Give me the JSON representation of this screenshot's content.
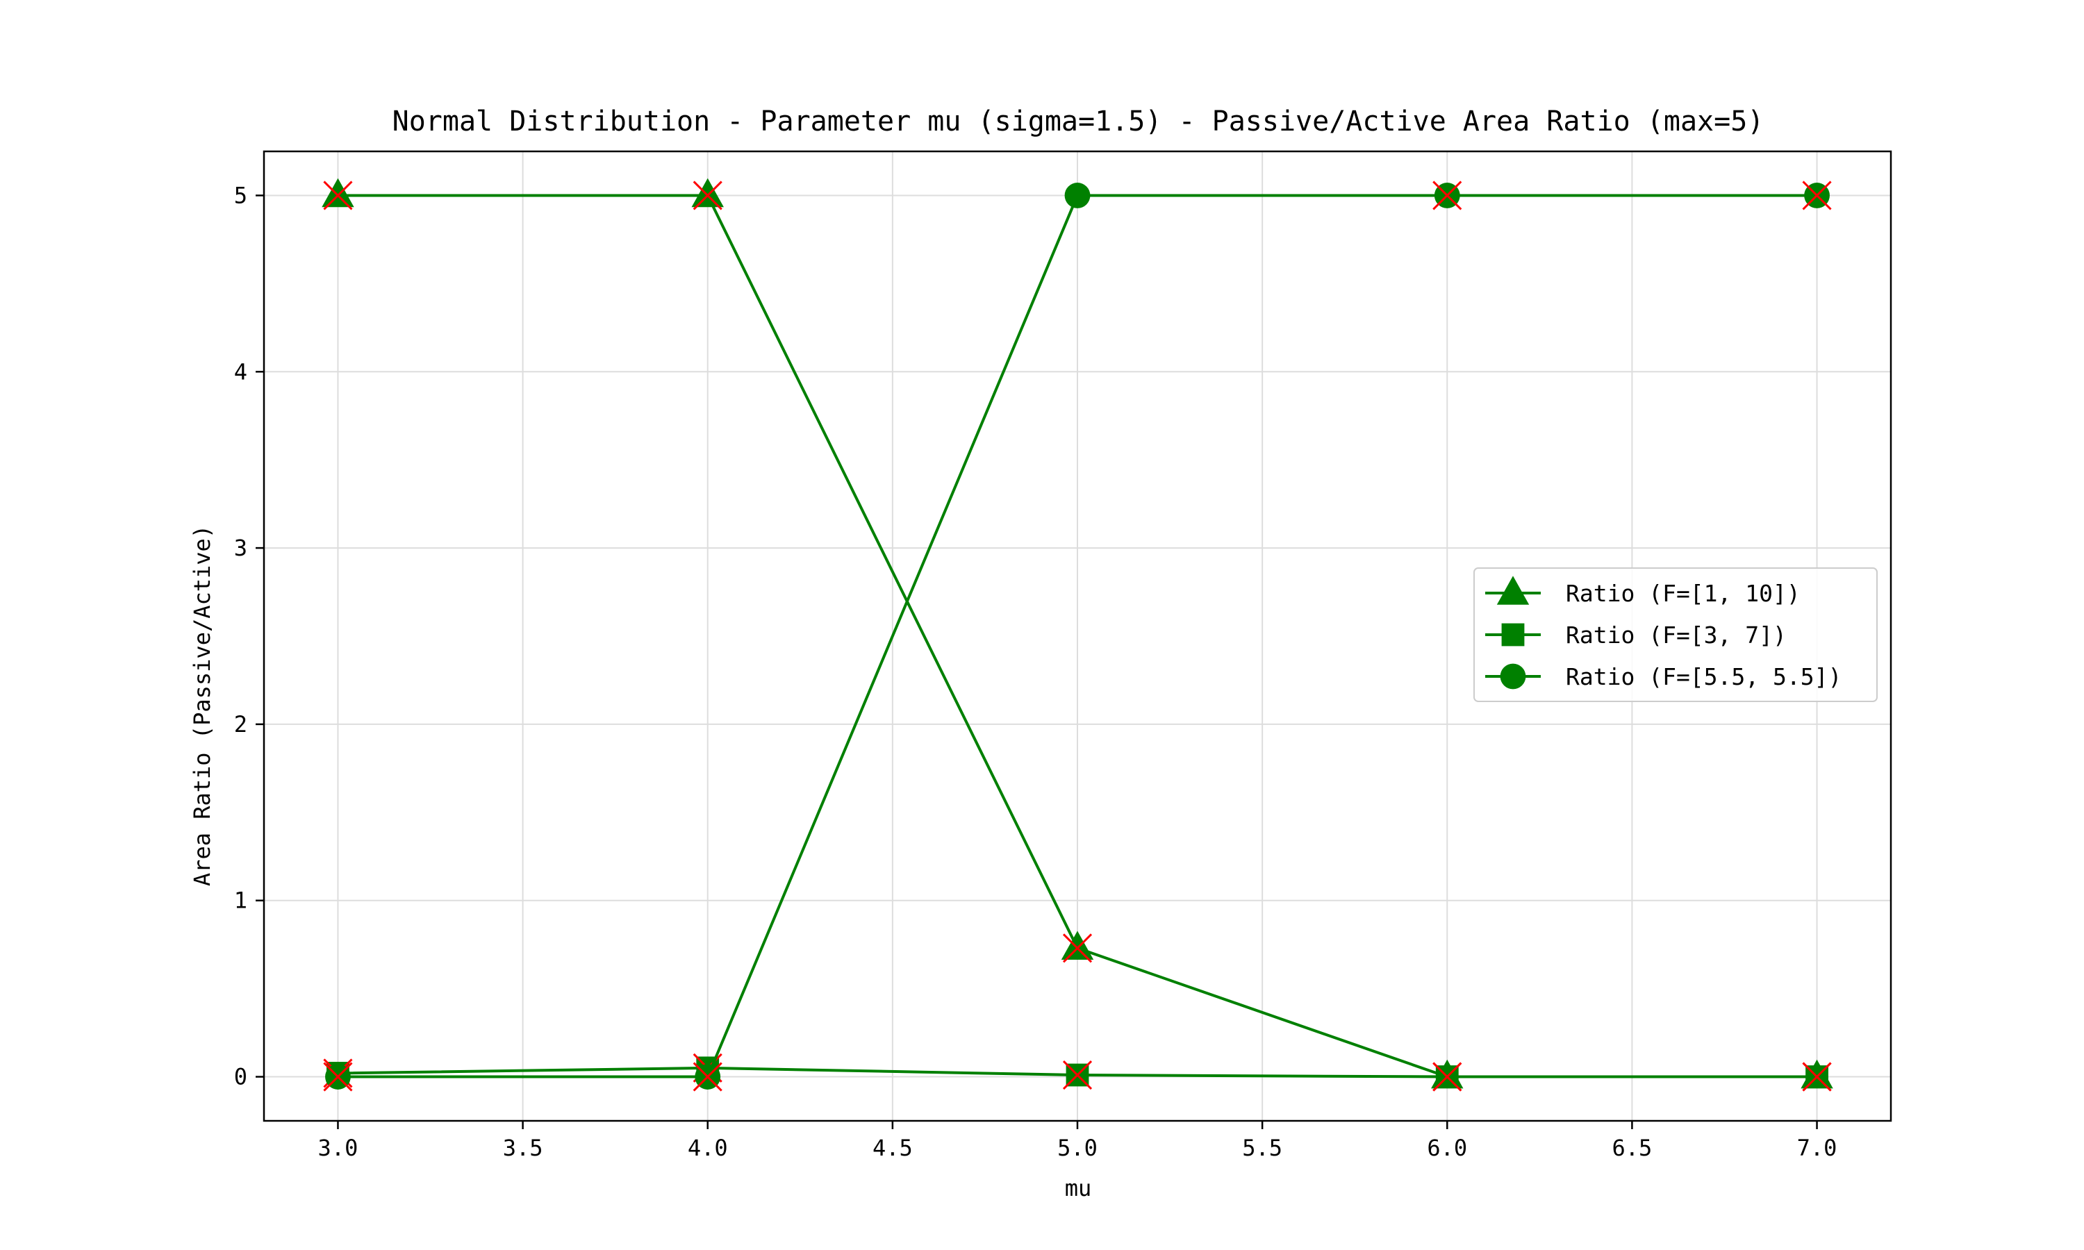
{
  "chart_data": {
    "type": "line",
    "title": "Normal Distribution - Parameter mu (sigma=1.5) - Passive/Active Area Ratio (max=5)",
    "xlabel": "mu",
    "ylabel": "Area Ratio (Passive/Active)",
    "x": [
      3.0,
      4.0,
      5.0,
      6.0,
      7.0
    ],
    "xlim": [
      2.8,
      7.2
    ],
    "ylim": [
      -0.25,
      5.25
    ],
    "xticks": [
      3.0,
      3.5,
      4.0,
      4.5,
      5.0,
      5.5,
      6.0,
      6.5,
      7.0
    ],
    "xtick_labels": [
      "3.0",
      "3.5",
      "4.0",
      "4.5",
      "5.0",
      "5.5",
      "6.0",
      "6.5",
      "7.0"
    ],
    "yticks": [
      0,
      1,
      2,
      3,
      4,
      5
    ],
    "ytick_labels": [
      "0",
      "1",
      "2",
      "3",
      "4",
      "5"
    ],
    "grid": true,
    "legend_position": "center-right",
    "series_color": "#008000",
    "capped_marker_color": "#ff0000",
    "series": [
      {
        "name": "Ratio (F=[1, 10])",
        "marker": "triangle",
        "values": [
          5.0,
          5.0,
          0.73,
          0.0,
          0.0
        ],
        "capped": [
          true,
          true,
          true,
          true,
          true
        ]
      },
      {
        "name": "Ratio (F=[3, 7])",
        "marker": "square",
        "values": [
          0.02,
          0.05,
          0.01,
          0.0,
          0.0
        ],
        "capped": [
          true,
          true,
          true,
          true,
          true
        ]
      },
      {
        "name": "Ratio (F=[5.5, 5.5])",
        "marker": "circle",
        "values": [
          0.0,
          0.0,
          5.0,
          5.0,
          5.0
        ],
        "capped": [
          true,
          true,
          false,
          true,
          true
        ]
      }
    ]
  }
}
